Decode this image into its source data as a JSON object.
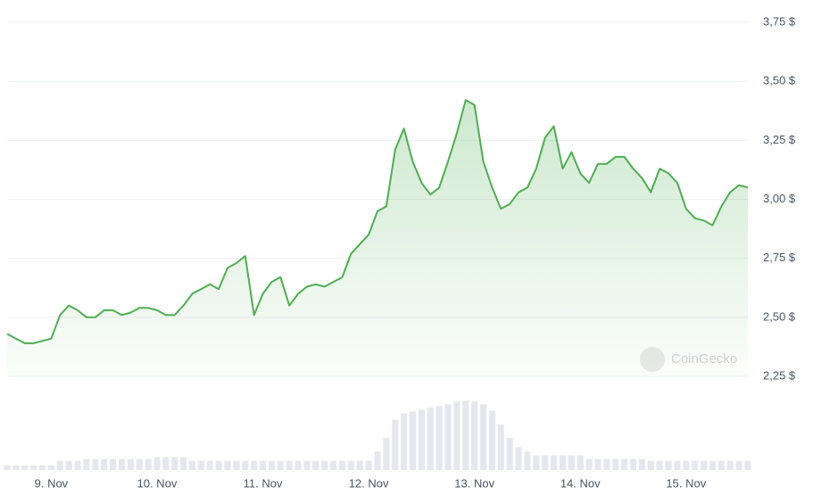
{
  "chart_data": {
    "type": "line",
    "categories": [
      null,
      null,
      null,
      null,
      null,
      "9. Nov",
      null,
      null,
      null,
      null,
      null,
      null,
      null,
      null,
      null,
      null,
      null,
      "10. Nov",
      null,
      null,
      null,
      null,
      null,
      null,
      null,
      null,
      null,
      null,
      null,
      "11. Nov",
      null,
      null,
      null,
      null,
      null,
      null,
      null,
      null,
      null,
      null,
      null,
      "12. Nov",
      null,
      null,
      null,
      null,
      null,
      null,
      null,
      null,
      null,
      null,
      null,
      "13. Nov",
      null,
      null,
      null,
      null,
      null,
      null,
      null,
      null,
      null,
      null,
      null,
      "14. Nov",
      null,
      null,
      null,
      null,
      null,
      null,
      null,
      null,
      null,
      null,
      null,
      "15. Nov",
      null,
      null,
      null,
      null,
      null,
      null,
      null
    ],
    "series": [
      {
        "color": "#4caf50",
        "values": [
          2.43,
          2.41,
          2.39,
          2.39,
          2.4,
          2.41,
          2.51,
          2.55,
          2.53,
          2.5,
          2.5,
          2.53,
          2.53,
          2.51,
          2.52,
          2.54,
          2.54,
          2.53,
          2.51,
          2.51,
          2.55,
          2.6,
          2.62,
          2.64,
          2.62,
          2.71,
          2.73,
          2.76,
          2.51,
          2.6,
          2.65,
          2.67,
          2.55,
          2.6,
          2.63,
          2.64,
          2.63,
          2.65,
          2.67,
          2.77,
          2.81,
          2.85,
          2.95,
          2.97,
          3.21,
          3.3,
          3.16,
          3.07,
          3.02,
          3.05,
          3.16,
          3.28,
          3.42,
          3.4,
          3.16,
          3.05,
          2.96,
          2.98,
          3.03,
          3.05,
          3.13,
          3.26,
          3.31,
          3.13,
          3.2,
          3.11,
          3.07,
          3.15,
          3.15,
          3.18,
          3.18,
          3.13,
          3.09,
          3.03,
          3.13,
          3.11,
          3.07,
          2.96,
          2.92,
          2.91,
          2.89,
          2.97,
          3.03,
          3.06,
          3.05
        ]
      },
      {
        "axis": "volume",
        "color": "#e6e6ee",
        "values": [
          5,
          5,
          5,
          5,
          5,
          5,
          10,
          10,
          10,
          12,
          12,
          12,
          12,
          12,
          12,
          12,
          12,
          14,
          14,
          14,
          14,
          10,
          10,
          10,
          10,
          10,
          10,
          10,
          10,
          10,
          10,
          10,
          10,
          10,
          10,
          10,
          10,
          10,
          10,
          10,
          10,
          10,
          20,
          35,
          55,
          62,
          64,
          66,
          68,
          70,
          72,
          75,
          76,
          75,
          72,
          65,
          50,
          35,
          25,
          20,
          16,
          16,
          16,
          16,
          16,
          16,
          12,
          12,
          12,
          12,
          12,
          12,
          12,
          10,
          10,
          10,
          10,
          10,
          10,
          10,
          10,
          10,
          10,
          10,
          10
        ]
      }
    ],
    "ylim": [
      2.25,
      3.75
    ],
    "yticks": [
      {
        "value": 2.25,
        "label": "2,25 $"
      },
      {
        "value": 2.5,
        "label": "2,50 $"
      },
      {
        "value": 2.75,
        "label": "2,75 $"
      },
      {
        "value": 3.0,
        "label": "3,00 $"
      },
      {
        "value": 3.25,
        "label": "3,25 $"
      },
      {
        "value": 3.5,
        "label": "3,50 $"
      },
      {
        "value": 3.75,
        "label": "3,75 $"
      }
    ],
    "volume_lim": [
      0,
      80
    ],
    "grid": true,
    "watermark": "CoinGecko"
  }
}
